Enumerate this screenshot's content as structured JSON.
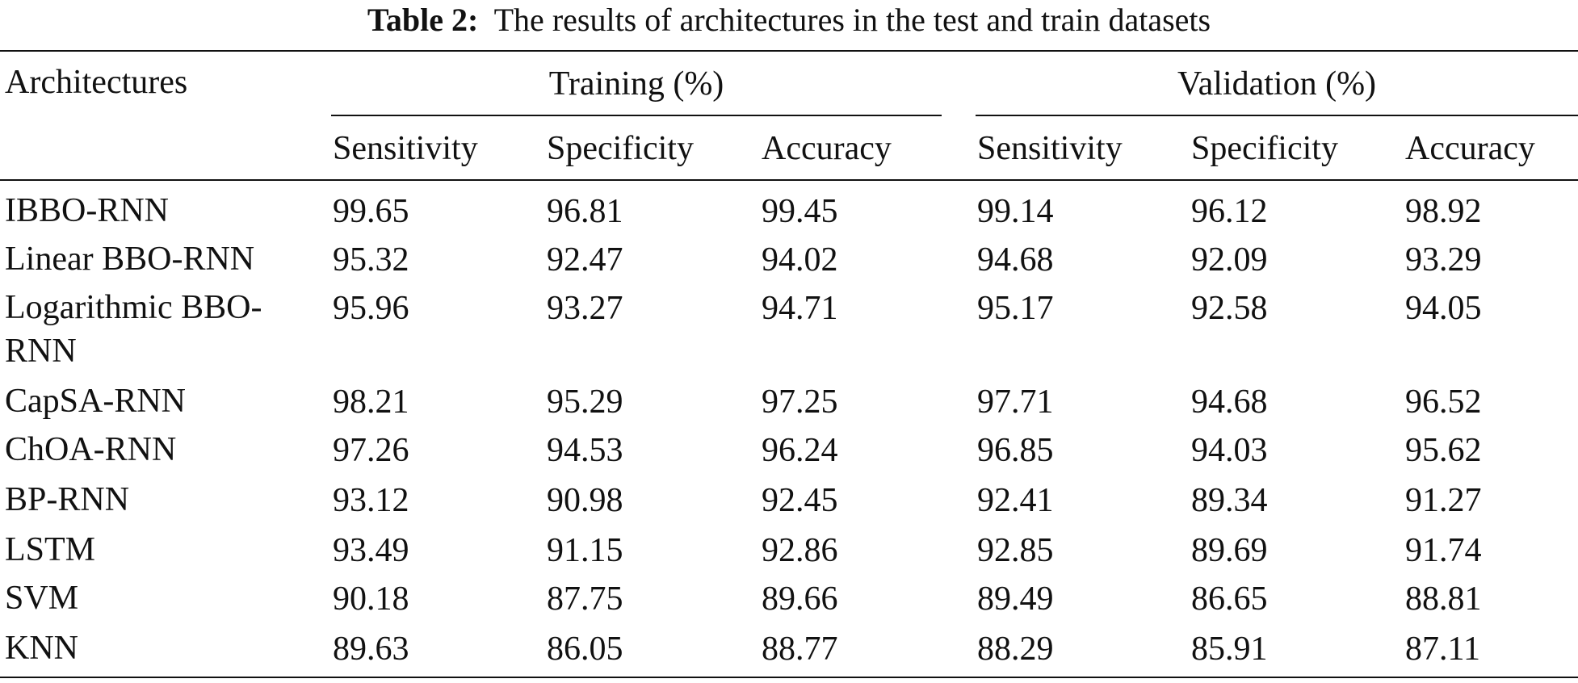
{
  "caption": {
    "label": "Table 2:",
    "text": "The results of architectures in the test and train datasets"
  },
  "table": {
    "row_header": "Architectures",
    "groups": [
      {
        "label": "Training (%)",
        "subheaders": [
          "Sensitivity",
          "Specificity",
          "Accuracy"
        ]
      },
      {
        "label": "Validation (%)",
        "subheaders": [
          "Sensitivity",
          "Specificity",
          "Accuracy"
        ]
      }
    ],
    "rows": [
      {
        "name": "IBBO-RNN",
        "values": [
          "99.65",
          "96.81",
          "99.45",
          "99.14",
          "96.12",
          "98.92"
        ]
      },
      {
        "name": "Linear BBO-RNN",
        "values": [
          "95.32",
          "92.47",
          "94.02",
          "94.68",
          "92.09",
          "93.29"
        ]
      },
      {
        "name": "Logarithmic BBO-RNN",
        "values": [
          "95.96",
          "93.27",
          "94.71",
          "95.17",
          "92.58",
          "94.05"
        ]
      },
      {
        "name": "CapSA-RNN",
        "values": [
          "98.21",
          "95.29",
          "97.25",
          "97.71",
          "94.68",
          "96.52"
        ]
      },
      {
        "name": "ChOA-RNN",
        "values": [
          "97.26",
          "94.53",
          "96.24",
          "96.85",
          "94.03",
          "95.62"
        ]
      },
      {
        "name": "BP-RNN",
        "values": [
          "93.12",
          "90.98",
          "92.45",
          "92.41",
          "89.34",
          "91.27"
        ]
      },
      {
        "name": "LSTM",
        "values": [
          "93.49",
          "91.15",
          "92.86",
          "92.85",
          "89.69",
          "91.74"
        ]
      },
      {
        "name": "SVM",
        "values": [
          "90.18",
          "87.75",
          "89.66",
          "89.49",
          "86.65",
          "88.81"
        ]
      },
      {
        "name": "KNN",
        "values": [
          "89.63",
          "86.05",
          "88.77",
          "88.29",
          "85.91",
          "87.11"
        ]
      }
    ]
  }
}
